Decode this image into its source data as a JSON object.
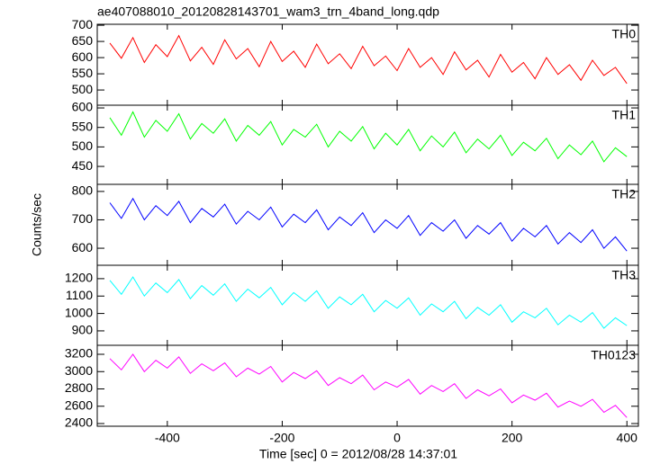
{
  "chart_data": [
    {
      "type": "line",
      "title": "ae407088010_20120828143701_wam3_trn_4band_long.qdp",
      "x": [
        -500,
        -480,
        -460,
        -440,
        -420,
        -400,
        -380,
        -360,
        -340,
        -320,
        -300,
        -280,
        -260,
        -240,
        -220,
        -200,
        -180,
        -160,
        -140,
        -120,
        -100,
        -80,
        -60,
        -40,
        -20,
        0,
        20,
        40,
        60,
        80,
        100,
        120,
        140,
        160,
        180,
        200,
        220,
        240,
        260,
        280,
        300,
        320,
        340,
        360,
        380,
        400
      ],
      "series": [
        {
          "name": "TH0",
          "color": "#ff0000",
          "values": [
            645,
            598,
            662,
            585,
            640,
            603,
            668,
            590,
            632,
            579,
            655,
            596,
            628,
            572,
            650,
            588,
            620,
            570,
            642,
            581,
            612,
            566,
            635,
            575,
            605,
            560,
            628,
            570,
            600,
            548,
            618,
            562,
            592,
            540,
            610,
            555,
            585,
            535,
            600,
            548,
            578,
            530,
            592,
            545,
            570,
            520
          ]
        }
      ],
      "xlim": [
        -522,
        420
      ],
      "xticks": [
        -400,
        -200,
        0,
        200,
        400
      ],
      "ylim": [
        453,
        703
      ],
      "yticks": [
        500,
        550,
        600,
        650,
        700
      ]
    },
    {
      "type": "line",
      "x": [
        -500,
        -480,
        -460,
        -440,
        -420,
        -400,
        -380,
        -360,
        -340,
        -320,
        -300,
        -280,
        -260,
        -240,
        -220,
        -200,
        -180,
        -160,
        -140,
        -120,
        -100,
        -80,
        -60,
        -40,
        -20,
        0,
        20,
        40,
        60,
        80,
        100,
        120,
        140,
        160,
        180,
        200,
        220,
        240,
        260,
        280,
        300,
        320,
        340,
        360,
        380,
        400
      ],
      "series": [
        {
          "name": "TH1",
          "color": "#00ff00",
          "values": [
            575,
            530,
            590,
            525,
            568,
            540,
            585,
            520,
            560,
            535,
            572,
            515,
            555,
            530,
            565,
            505,
            545,
            525,
            558,
            500,
            540,
            515,
            552,
            495,
            535,
            505,
            545,
            490,
            528,
            500,
            538,
            485,
            520,
            495,
            530,
            478,
            512,
            490,
            522,
            470,
            505,
            480,
            515,
            462,
            498,
            475
          ]
        }
      ],
      "xlim": [
        -522,
        420
      ],
      "xticks": [
        -400,
        -200,
        0,
        200,
        400
      ],
      "ylim": [
        404,
        607
      ],
      "yticks": [
        450,
        500,
        550,
        600
      ]
    },
    {
      "type": "line",
      "ylabel": "Counts/sec",
      "x": [
        -500,
        -480,
        -460,
        -440,
        -420,
        -400,
        -380,
        -360,
        -340,
        -320,
        -300,
        -280,
        -260,
        -240,
        -220,
        -200,
        -180,
        -160,
        -140,
        -120,
        -100,
        -80,
        -60,
        -40,
        -20,
        0,
        20,
        40,
        60,
        80,
        100,
        120,
        140,
        160,
        180,
        200,
        220,
        240,
        260,
        280,
        300,
        320,
        340,
        360,
        380,
        400
      ],
      "series": [
        {
          "name": "TH2",
          "color": "#0000ff",
          "values": [
            760,
            705,
            775,
            700,
            750,
            715,
            765,
            690,
            740,
            710,
            755,
            685,
            730,
            700,
            745,
            675,
            720,
            690,
            735,
            665,
            710,
            680,
            725,
            655,
            700,
            670,
            715,
            645,
            690,
            660,
            700,
            635,
            680,
            650,
            690,
            625,
            670,
            640,
            680,
            615,
            655,
            620,
            665,
            600,
            640,
            590
          ]
        }
      ],
      "xlim": [
        -522,
        420
      ],
      "xticks": [
        -400,
        -200,
        0,
        200,
        400
      ],
      "ylim": [
        540,
        825
      ],
      "yticks": [
        600,
        700,
        800
      ]
    },
    {
      "type": "line",
      "x": [
        -500,
        -480,
        -460,
        -440,
        -420,
        -400,
        -380,
        -360,
        -340,
        -320,
        -300,
        -280,
        -260,
        -240,
        -220,
        -200,
        -180,
        -160,
        -140,
        -120,
        -100,
        -80,
        -60,
        -40,
        -20,
        0,
        20,
        40,
        60,
        80,
        100,
        120,
        140,
        160,
        180,
        200,
        220,
        240,
        260,
        280,
        300,
        320,
        340,
        360,
        380,
        400
      ],
      "series": [
        {
          "name": "TH3",
          "color": "#00ffff",
          "values": [
            1190,
            1110,
            1210,
            1100,
            1175,
            1120,
            1195,
            1085,
            1160,
            1105,
            1170,
            1070,
            1140,
            1090,
            1150,
            1050,
            1120,
            1070,
            1130,
            1030,
            1095,
            1050,
            1110,
            1010,
            1075,
            1030,
            1090,
            990,
            1055,
            1010,
            1070,
            970,
            1035,
            990,
            1050,
            950,
            1010,
            975,
            1030,
            935,
            990,
            950,
            1005,
            915,
            975,
            930
          ]
        }
      ],
      "xlim": [
        -522,
        420
      ],
      "xticks": [
        -400,
        -200,
        0,
        200,
        400
      ],
      "ylim": [
        817,
        1277
      ],
      "yticks": [
        900,
        1000,
        1100,
        1200
      ]
    },
    {
      "type": "line",
      "xlabel": "Time [sec] 0 = 2012/08/28 14:37:01",
      "x": [
        -500,
        -480,
        -460,
        -440,
        -420,
        -400,
        -380,
        -360,
        -340,
        -320,
        -300,
        -280,
        -260,
        -240,
        -220,
        -200,
        -180,
        -160,
        -140,
        -120,
        -100,
        -80,
        -60,
        -40,
        -20,
        0,
        20,
        40,
        60,
        80,
        100,
        120,
        140,
        160,
        180,
        200,
        220,
        240,
        260,
        280,
        300,
        320,
        340,
        360,
        380,
        400
      ],
      "series": [
        {
          "name": "TH0123",
          "color": "#ff00ff",
          "values": [
            3150,
            3020,
            3200,
            3000,
            3130,
            3040,
            3170,
            2980,
            3090,
            3010,
            3100,
            2940,
            3040,
            2970,
            3060,
            2880,
            2990,
            2920,
            3010,
            2840,
            2930,
            2860,
            2960,
            2790,
            2880,
            2820,
            2910,
            2740,
            2840,
            2770,
            2860,
            2690,
            2790,
            2720,
            2800,
            2640,
            2730,
            2670,
            2750,
            2590,
            2660,
            2600,
            2680,
            2530,
            2610,
            2470
          ]
        }
      ],
      "xlim": [
        -522,
        420
      ],
      "xticks": [
        -400,
        -200,
        0,
        200,
        400
      ],
      "ylim": [
        2369,
        3304
      ],
      "yticks": [
        2400,
        2600,
        2800,
        3000,
        3200
      ]
    }
  ]
}
